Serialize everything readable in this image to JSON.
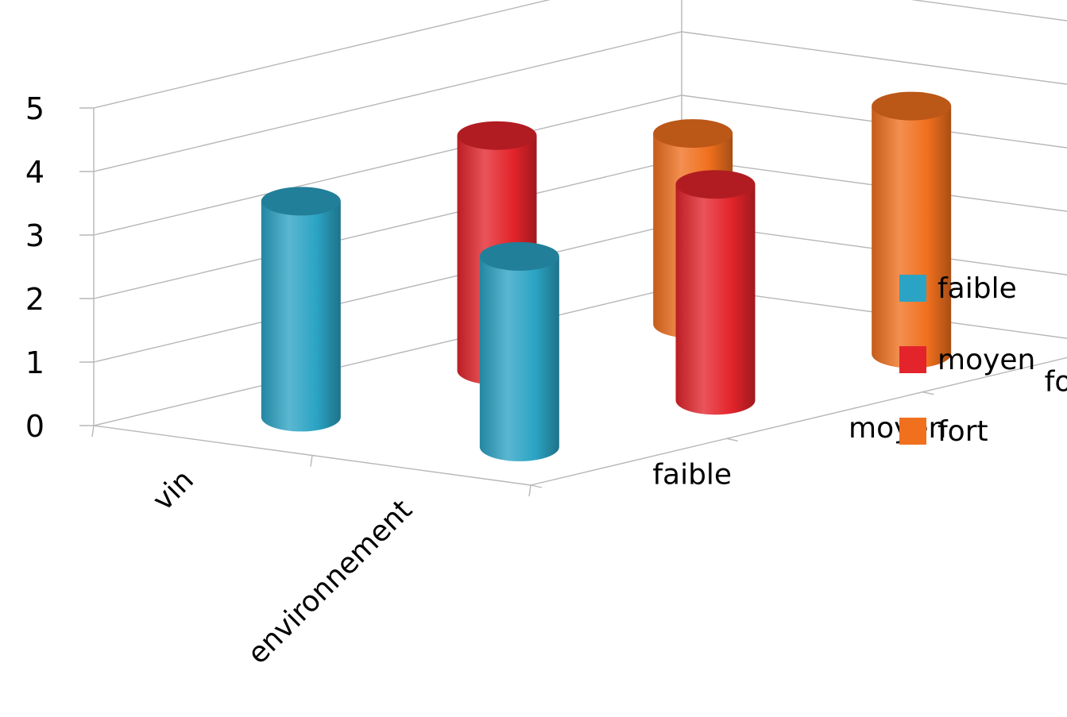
{
  "chart_data": {
    "type": "bar",
    "style": "3d-cylinder",
    "categories": [
      "vin",
      "environnement"
    ],
    "series": [
      {
        "name": "faible",
        "color": "#2BA3C4",
        "values": [
          3.4,
          3.0
        ]
      },
      {
        "name": "moyen",
        "color": "#E3242B",
        "values": [
          3.7,
          3.4
        ]
      },
      {
        "name": "fort",
        "color": "#F0701E",
        "values": [
          3.0,
          3.9
        ]
      }
    ],
    "ylim": [
      0,
      5
    ],
    "yticks": [
      "0",
      "1",
      "2",
      "3",
      "4",
      "5"
    ],
    "depth_labels": [
      "faible",
      "moyen",
      "fort"
    ],
    "grid": true,
    "legend": "right"
  }
}
